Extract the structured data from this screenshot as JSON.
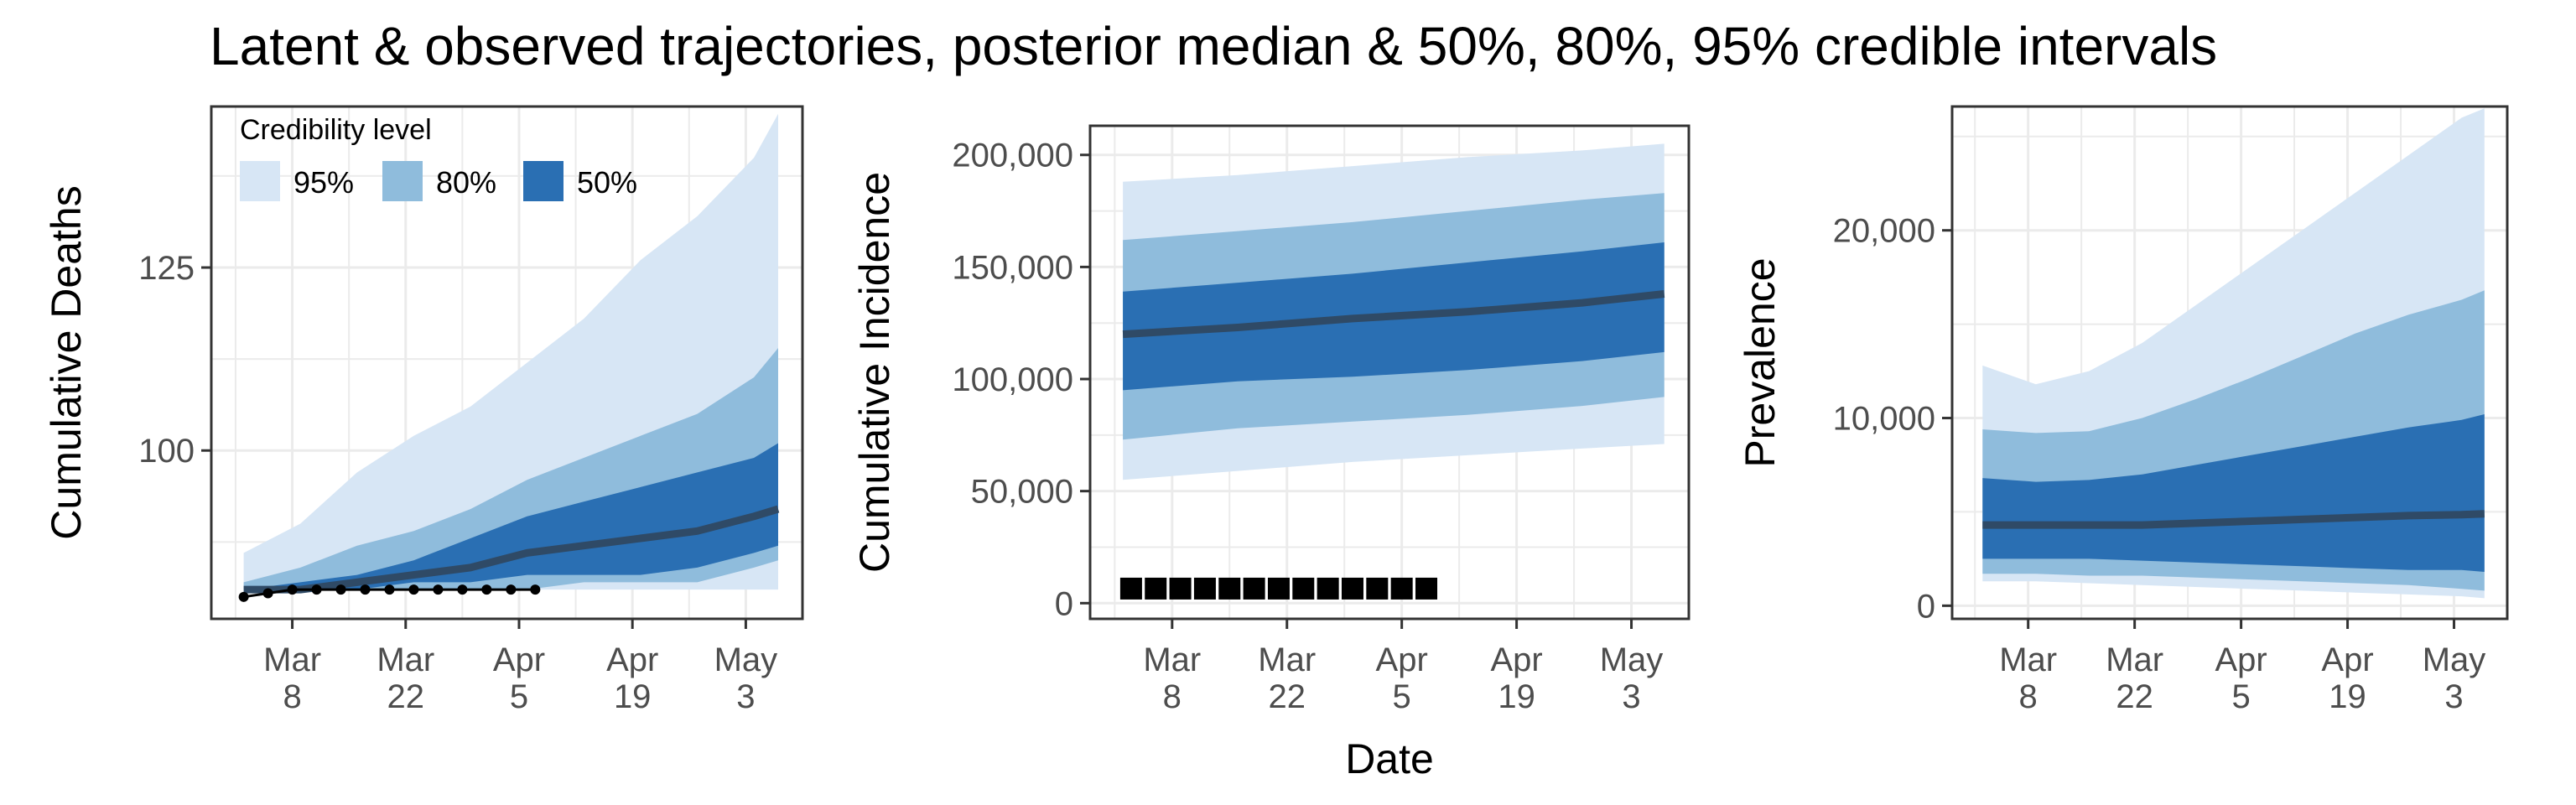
{
  "title": "Latent & observed trajectories, posterior median & 50%, 80%, 95% credible intervals",
  "xlabel": "Date",
  "colors": {
    "band95": "#d7e6f5",
    "band80": "#8fbcdc",
    "band50": "#2a6fb3",
    "median": "#2f4a66",
    "observed": "#000000",
    "grid": "#ebebeb",
    "panel_border": "#333333"
  },
  "legend": {
    "title": "Credibility level",
    "entries": [
      "95%",
      "80%",
      "50%"
    ],
    "placement": "top-left inside first panel"
  },
  "x_ticks": [
    {
      "line1": "Mar",
      "line2": "8",
      "date": "2020-03-08"
    },
    {
      "line1": "Mar",
      "line2": "22",
      "date": "2020-03-22"
    },
    {
      "line1": "Apr",
      "line2": "5",
      "date": "2020-04-05"
    },
    {
      "line1": "Apr",
      "line2": "19",
      "date": "2020-04-19"
    },
    {
      "line1": "May",
      "line2": "3",
      "date": "2020-05-03"
    }
  ],
  "chart_data": [
    {
      "type": "area",
      "ylabel": "Cumulative Deaths",
      "xlim": [
        "2020-02-27",
        "2020-05-10"
      ],
      "ylim": [
        77,
        147
      ],
      "yticks": [
        {
          "value": 100,
          "label": "100"
        },
        {
          "value": 125,
          "label": "125"
        }
      ],
      "grid": true,
      "x": [
        "2020-03-02",
        "2020-03-09",
        "2020-03-16",
        "2020-03-23",
        "2020-03-30",
        "2020-04-06",
        "2020-04-13",
        "2020-04-20",
        "2020-04-27",
        "2020-05-04",
        "2020-05-07"
      ],
      "median": [
        81,
        81,
        82,
        83,
        84,
        86,
        87,
        88,
        89,
        91,
        92
      ],
      "q50": {
        "lower": [
          81,
          81,
          81,
          82,
          82,
          83,
          83,
          83,
          84,
          86,
          87
        ],
        "upper": [
          81,
          82,
          83,
          85,
          88,
          91,
          93,
          95,
          97,
          99,
          101
        ]
      },
      "q80": {
        "lower": [
          81,
          81,
          81,
          81,
          81,
          81,
          82,
          82,
          82,
          84,
          85
        ],
        "upper": [
          82,
          84,
          87,
          89,
          92,
          96,
          99,
          102,
          105,
          110,
          114
        ]
      },
      "q95": {
        "lower": [
          81,
          81,
          81,
          81,
          81,
          81,
          81,
          81,
          81,
          81,
          81
        ],
        "upper": [
          86,
          90,
          97,
          102,
          106,
          112,
          118,
          126,
          132,
          140,
          146
        ]
      },
      "observed": {
        "x": [
          "2020-03-02",
          "2020-03-05",
          "2020-03-08",
          "2020-03-11",
          "2020-03-14",
          "2020-03-17",
          "2020-03-20",
          "2020-03-23",
          "2020-03-26",
          "2020-03-29",
          "2020-04-01",
          "2020-04-04",
          "2020-04-07"
        ],
        "y": [
          80,
          80.5,
          81,
          81,
          81,
          81,
          81,
          81,
          81,
          81,
          81,
          81,
          81
        ]
      }
    },
    {
      "type": "area",
      "ylabel": "Cumulative Incidence",
      "xlim": [
        "2020-02-27",
        "2020-05-10"
      ],
      "ylim": [
        -7000,
        213000
      ],
      "yticks": [
        {
          "value": 0,
          "label": "0"
        },
        {
          "value": 50000,
          "label": "50,000"
        },
        {
          "value": 100000,
          "label": "100,000"
        },
        {
          "value": 150000,
          "label": "150,000"
        },
        {
          "value": 200000,
          "label": "200,000"
        }
      ],
      "grid": true,
      "x": [
        "2020-03-02",
        "2020-03-16",
        "2020-03-30",
        "2020-04-13",
        "2020-04-27",
        "2020-05-07"
      ],
      "median": [
        120000,
        123000,
        127000,
        130000,
        134000,
        138000
      ],
      "q50": {
        "lower": [
          95000,
          99000,
          101000,
          104000,
          108000,
          112000
        ],
        "upper": [
          139000,
          143000,
          147000,
          152000,
          157000,
          161000
        ]
      },
      "q80": {
        "lower": [
          73000,
          78000,
          81000,
          84000,
          88000,
          92000
        ],
        "upper": [
          162000,
          166000,
          170000,
          175000,
          180000,
          183000
        ]
      },
      "q95": {
        "lower": [
          55000,
          59000,
          63000,
          66000,
          69000,
          71000
        ],
        "upper": [
          188000,
          191000,
          195000,
          199000,
          202000,
          205000
        ]
      },
      "observed": {
        "marker": "square",
        "x": [
          "2020-03-03",
          "2020-03-06",
          "2020-03-09",
          "2020-03-12",
          "2020-03-15",
          "2020-03-18",
          "2020-03-21",
          "2020-03-24",
          "2020-03-27",
          "2020-03-30",
          "2020-04-02",
          "2020-04-05",
          "2020-04-08"
        ],
        "y": [
          6500,
          6500,
          6500,
          6500,
          6500,
          6500,
          6500,
          6500,
          6500,
          6500,
          6500,
          6500,
          6500
        ]
      }
    },
    {
      "type": "area",
      "ylabel": "Prevalence",
      "xlim": [
        "2020-02-27",
        "2020-05-10"
      ],
      "ylim": [
        -700,
        26600
      ],
      "yticks": [
        {
          "value": 0,
          "label": "0"
        },
        {
          "value": 10000,
          "label": "10,000"
        },
        {
          "value": 20000,
          "label": "20,000"
        }
      ],
      "grid": true,
      "x": [
        "2020-03-02",
        "2020-03-09",
        "2020-03-16",
        "2020-03-23",
        "2020-03-30",
        "2020-04-06",
        "2020-04-13",
        "2020-04-20",
        "2020-04-27",
        "2020-05-04",
        "2020-05-07"
      ],
      "median": [
        4300,
        4300,
        4300,
        4300,
        4400,
        4500,
        4600,
        4700,
        4800,
        4850,
        4900
      ],
      "q50": {
        "lower": [
          2500,
          2500,
          2500,
          2400,
          2300,
          2200,
          2100,
          2000,
          1900,
          1900,
          1800
        ],
        "upper": [
          6800,
          6600,
          6700,
          7000,
          7500,
          8000,
          8500,
          9000,
          9500,
          9900,
          10200
        ]
      },
      "q80": {
        "lower": [
          1700,
          1700,
          1600,
          1600,
          1500,
          1400,
          1300,
          1200,
          1100,
          900,
          800
        ],
        "upper": [
          9400,
          9200,
          9300,
          10000,
          11000,
          12100,
          13300,
          14500,
          15500,
          16300,
          16800
        ]
      },
      "q95": {
        "lower": [
          1300,
          1300,
          1200,
          1100,
          1000,
          900,
          800,
          700,
          600,
          500,
          400
        ],
        "upper": [
          12800,
          11800,
          12500,
          14000,
          16000,
          18000,
          20000,
          22000,
          24000,
          26000,
          26500
        ]
      },
      "observed": null
    }
  ]
}
